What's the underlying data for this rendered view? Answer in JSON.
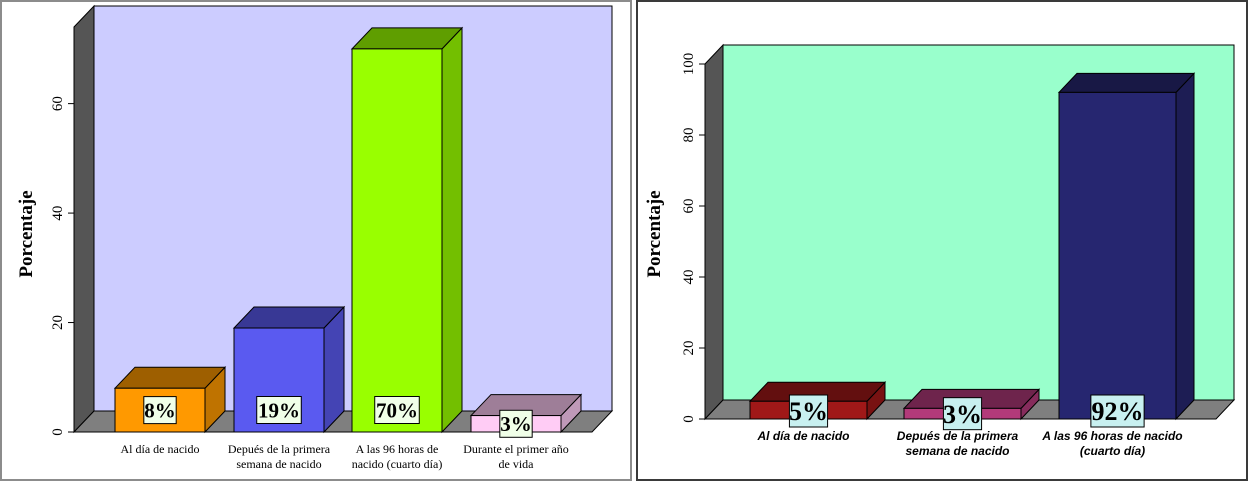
{
  "chart_data": [
    {
      "type": "bar",
      "ylabel": "Porcentaje",
      "ylim": [
        0,
        74
      ],
      "yticks": [
        0,
        20,
        40,
        60
      ],
      "categories": [
        [
          "Al día de nacido"
        ],
        [
          "Depués de la primera",
          "semana de nacido"
        ],
        [
          "A las 96 horas de",
          "nacido (cuarto día)"
        ],
        [
          "Durante el primer año",
          "de vida"
        ]
      ],
      "values": [
        8,
        19,
        70,
        3
      ],
      "data_labels": [
        "8%",
        "19%",
        "70%",
        "3%"
      ],
      "colors": [
        "#ff9900",
        "#5a5af0",
        "#99ff00",
        "#ffccf5"
      ],
      "background": "#ccccff",
      "grid": false
    },
    {
      "type": "bar",
      "ylabel": "Porcentaje",
      "ylim": [
        0,
        100
      ],
      "yticks": [
        0,
        20,
        40,
        60,
        80,
        100
      ],
      "categories": [
        [
          "Al día de nacido"
        ],
        [
          "Depués de la primera",
          "semana de nacido"
        ],
        [
          "A las 96 horas de nacido",
          "(cuarto día)"
        ]
      ],
      "values": [
        5,
        3,
        92
      ],
      "data_labels": [
        "5%",
        "3%",
        "92%"
      ],
      "colors": [
        "#a01818",
        "#b23a7a",
        "#262670"
      ],
      "background": "#99ffcc",
      "grid": false
    }
  ]
}
